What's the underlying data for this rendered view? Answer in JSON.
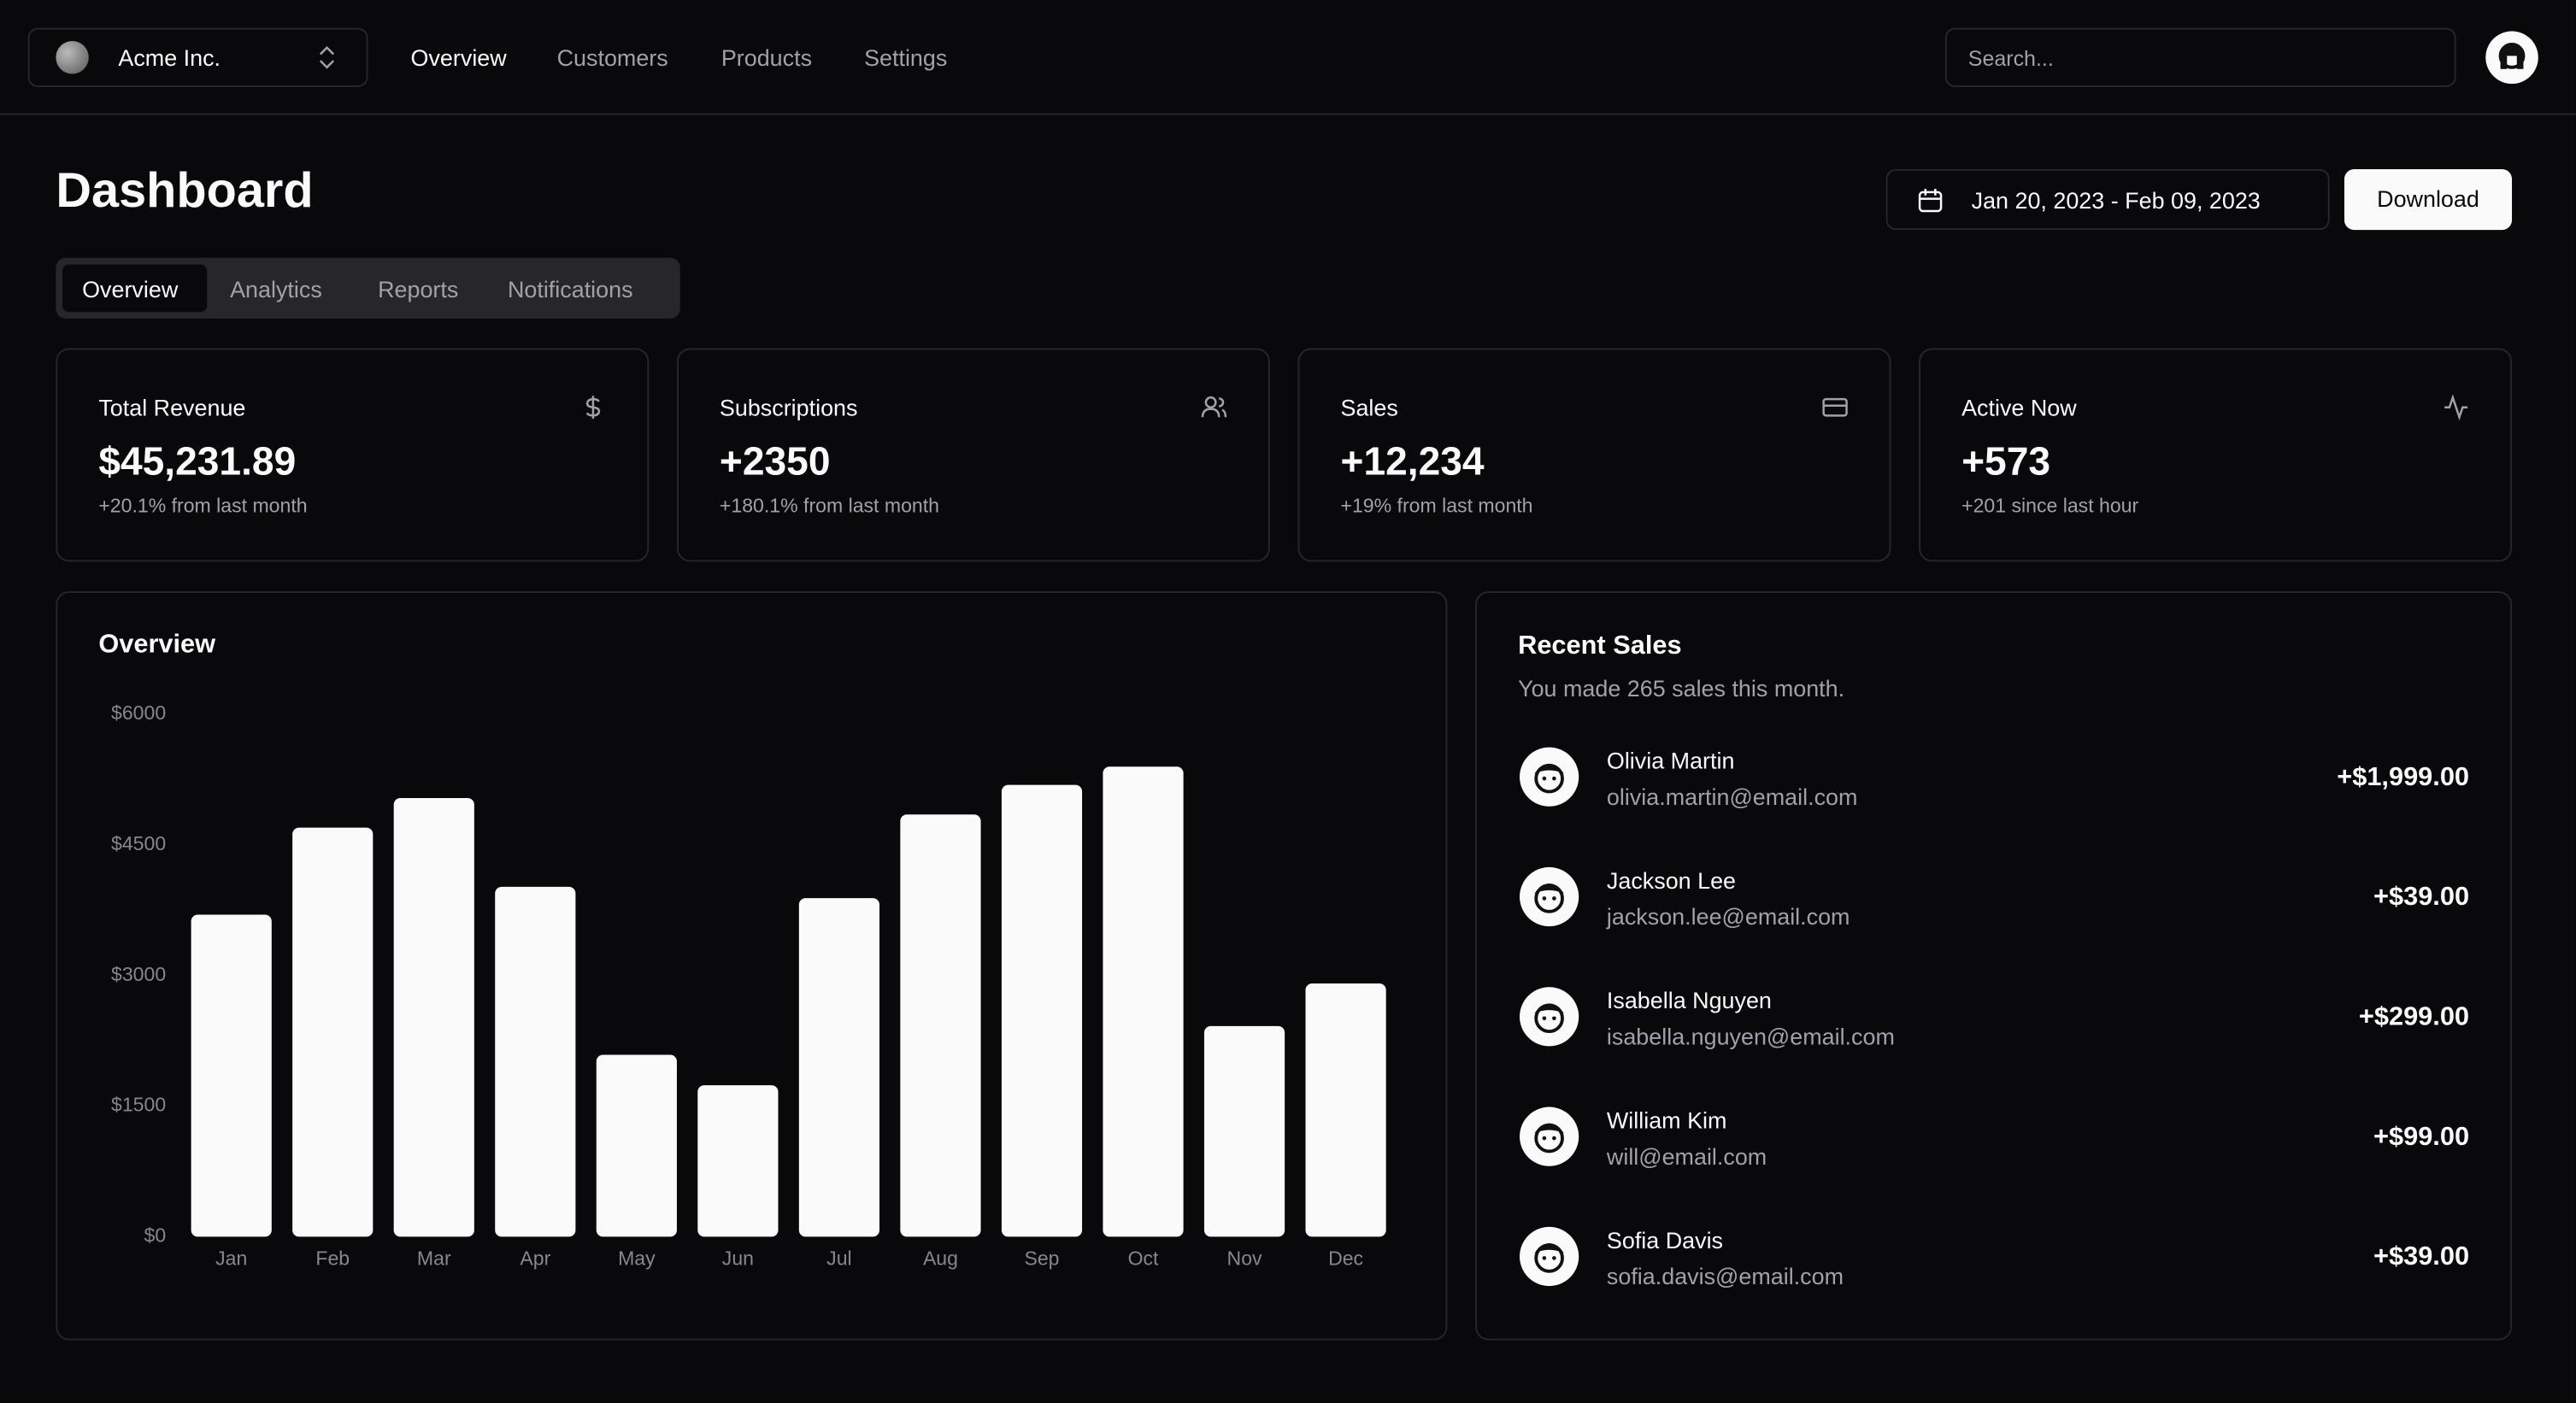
{
  "nav": {
    "team": "Acme Inc.",
    "links": [
      "Overview",
      "Customers",
      "Products",
      "Settings"
    ],
    "search_placeholder": "Search..."
  },
  "header": {
    "title": "Dashboard",
    "date_range": "Jan 20, 2023 - Feb 09, 2023",
    "download": "Download"
  },
  "tabs": [
    "Overview",
    "Analytics",
    "Reports",
    "Notifications"
  ],
  "cards": [
    {
      "title": "Total Revenue",
      "value": "$45,231.89",
      "note": "+20.1% from last month"
    },
    {
      "title": "Subscriptions",
      "value": "+2350",
      "note": "+180.1% from last month"
    },
    {
      "title": "Sales",
      "value": "+12,234",
      "note": "+19% from last month"
    },
    {
      "title": "Active Now",
      "value": "+573",
      "note": "+201 since last hour"
    }
  ],
  "chart_data": {
    "type": "bar",
    "title": "Overview",
    "categories": [
      "Jan",
      "Feb",
      "Mar",
      "Apr",
      "May",
      "Jun",
      "Jul",
      "Aug",
      "Sep",
      "Oct",
      "Nov",
      "Dec"
    ],
    "values": [
      3700,
      4700,
      5040,
      4020,
      2090,
      1740,
      3890,
      4850,
      5190,
      5400,
      2420,
      2910
    ],
    "color": "#fafafa",
    "ylim": [
      0,
      6000
    ],
    "yticks": [
      {
        "value": 0,
        "label": "$0"
      },
      {
        "value": 1500,
        "label": "$1500"
      },
      {
        "value": 3000,
        "label": "$3000"
      },
      {
        "value": 4500,
        "label": "$4500"
      },
      {
        "value": 6000,
        "label": "$6000"
      }
    ],
    "grid": false
  },
  "recent_sales": {
    "title": "Recent Sales",
    "subtitle": "You made 265 sales this month.",
    "rows": [
      {
        "name": "Olivia Martin",
        "email": "olivia.martin@email.com",
        "amount": "+$1,999.00"
      },
      {
        "name": "Jackson Lee",
        "email": "jackson.lee@email.com",
        "amount": "+$39.00"
      },
      {
        "name": "Isabella Nguyen",
        "email": "isabella.nguyen@email.com",
        "amount": "+$299.00"
      },
      {
        "name": "William Kim",
        "email": "will@email.com",
        "amount": "+$99.00"
      },
      {
        "name": "Sofia Davis",
        "email": "sofia.davis@email.com",
        "amount": "+$39.00"
      }
    ]
  }
}
